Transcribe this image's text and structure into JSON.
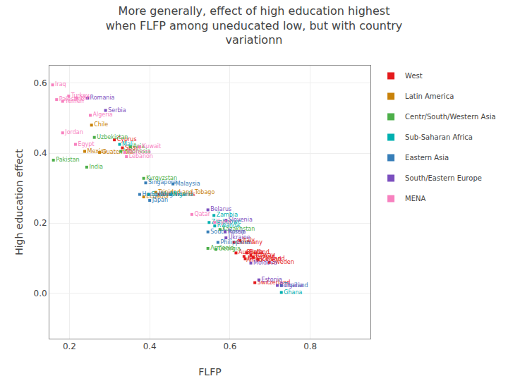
{
  "chart_data": {
    "type": "scatter",
    "title": "More generally, effect of high education highest\nwhen FLFP among uneducated low, but with country\nvariationn",
    "x_label": "FLFP",
    "y_label": "High education effect",
    "xlim": [
      0.15,
      0.95
    ],
    "ylim": [
      -0.13,
      0.65
    ],
    "xticks": [
      0.2,
      0.4,
      0.6,
      0.8
    ],
    "yticks": [
      {
        "value": 0.0,
        "label": "0.0"
      },
      0.2,
      0.4,
      0.6
    ],
    "grid": true,
    "legend": "right",
    "marker": "square",
    "series": [
      {
        "name": "West",
        "color": "#e41a1c",
        "labels": [
          "Cyprus",
          "Spain",
          "Netherlands",
          "Germany",
          "Italy",
          "Australia",
          "Finland",
          "South\nAfrica",
          "Norway",
          "Ireland",
          "New Zealand",
          "Iceland",
          "Sweden",
          "Switzerland"
        ],
        "x": [
          0.312,
          0.332,
          0.422,
          0.61,
          0.625,
          0.615,
          0.642,
          0.635,
          0.652,
          0.658,
          0.638,
          0.67,
          0.698,
          0.662
        ],
        "values": [
          0.438,
          0.415,
          0.282,
          0.145,
          0.15,
          0.115,
          0.115,
          0.105,
          0.108,
          0.103,
          0.098,
          0.096,
          0.088,
          0.03
        ]
      },
      {
        "name": "Latin America",
        "color": "#c8820a",
        "labels": [
          "Chile",
          "Mexico",
          "Guatemala",
          "Trinidad and Tobago",
          "Ecuador"
        ],
        "x": [
          0.255,
          0.238,
          0.275,
          0.415,
          0.385
        ],
        "values": [
          0.48,
          0.405,
          0.402,
          0.288,
          0.275
        ]
      },
      {
        "name": "Centr/South/Western Asia",
        "color": "#4daf4a",
        "labels": [
          "Uzbekistan",
          "Asia",
          "Indonesia",
          "Pakistan",
          "India",
          "Kyrgyzstan",
          "Kazakhstan",
          "Armenia",
          "Georgia"
        ],
        "x": [
          0.262,
          0.352,
          0.328,
          0.16,
          0.243,
          0.385,
          0.575,
          0.545,
          0.565
        ],
        "values": [
          0.445,
          0.418,
          0.405,
          0.38,
          0.36,
          0.328,
          0.182,
          0.128,
          0.125
        ]
      },
      {
        "name": "Sub-Saharan Africa",
        "color": "#00b0b0",
        "labels": [
          "Mali",
          "South Africa",
          "Nigeria",
          "Zambia",
          "Zimbabwe",
          "Rwanda",
          "Ghana"
        ],
        "x": [
          0.325,
          0.398,
          0.452,
          0.56,
          0.548,
          0.562,
          0.728
        ],
        "values": [
          0.425,
          0.282,
          0.282,
          0.222,
          0.202,
          0.192,
          0.002
        ]
      },
      {
        "name": "Eastern Asia",
        "color": "#377eb8",
        "labels": [
          "Singapore",
          "Malaysia",
          "Hong Kong",
          "Japan",
          "South Korea",
          "Philippines",
          "Thailand"
        ],
        "x": [
          0.39,
          0.458,
          0.375,
          0.4,
          0.545,
          0.57,
          0.728
        ],
        "values": [
          0.315,
          0.312,
          0.282,
          0.265,
          0.175,
          0.145,
          0.022
        ]
      },
      {
        "name": "South/Eastern Europe",
        "color": "#7B4FBE",
        "labels": [
          "Romania",
          "Serbia",
          "Belarus",
          "Slovenia",
          "Russia",
          "Ukraine",
          "Moldova",
          "Estonia",
          "Bulgaria"
        ],
        "x": [
          0.245,
          0.29,
          0.545,
          0.59,
          0.588,
          0.59,
          0.652,
          0.672,
          0.718
        ],
        "values": [
          0.557,
          0.522,
          0.238,
          0.208,
          0.175,
          0.158,
          0.086,
          0.038,
          0.022
        ]
      },
      {
        "name": "MENA",
        "color": "#f781bf",
        "labels": [
          "Iraq",
          "Palestine",
          "Turkey",
          "Yemen",
          "Iran",
          "Algeria",
          "Jordan",
          "Egypt",
          "Kuwait",
          "Morocco",
          "Lebanon",
          "Qatar",
          "Syria"
        ],
        "x": [
          0.158,
          0.168,
          0.198,
          0.183,
          0.218,
          0.252,
          0.183,
          0.215,
          0.375,
          0.338,
          0.342,
          0.505,
          0.562
        ],
        "values": [
          0.595,
          0.553,
          0.563,
          0.548,
          0.557,
          0.508,
          0.458,
          0.425,
          0.418,
          0.402,
          0.39,
          0.225,
          0.202
        ]
      }
    ]
  }
}
